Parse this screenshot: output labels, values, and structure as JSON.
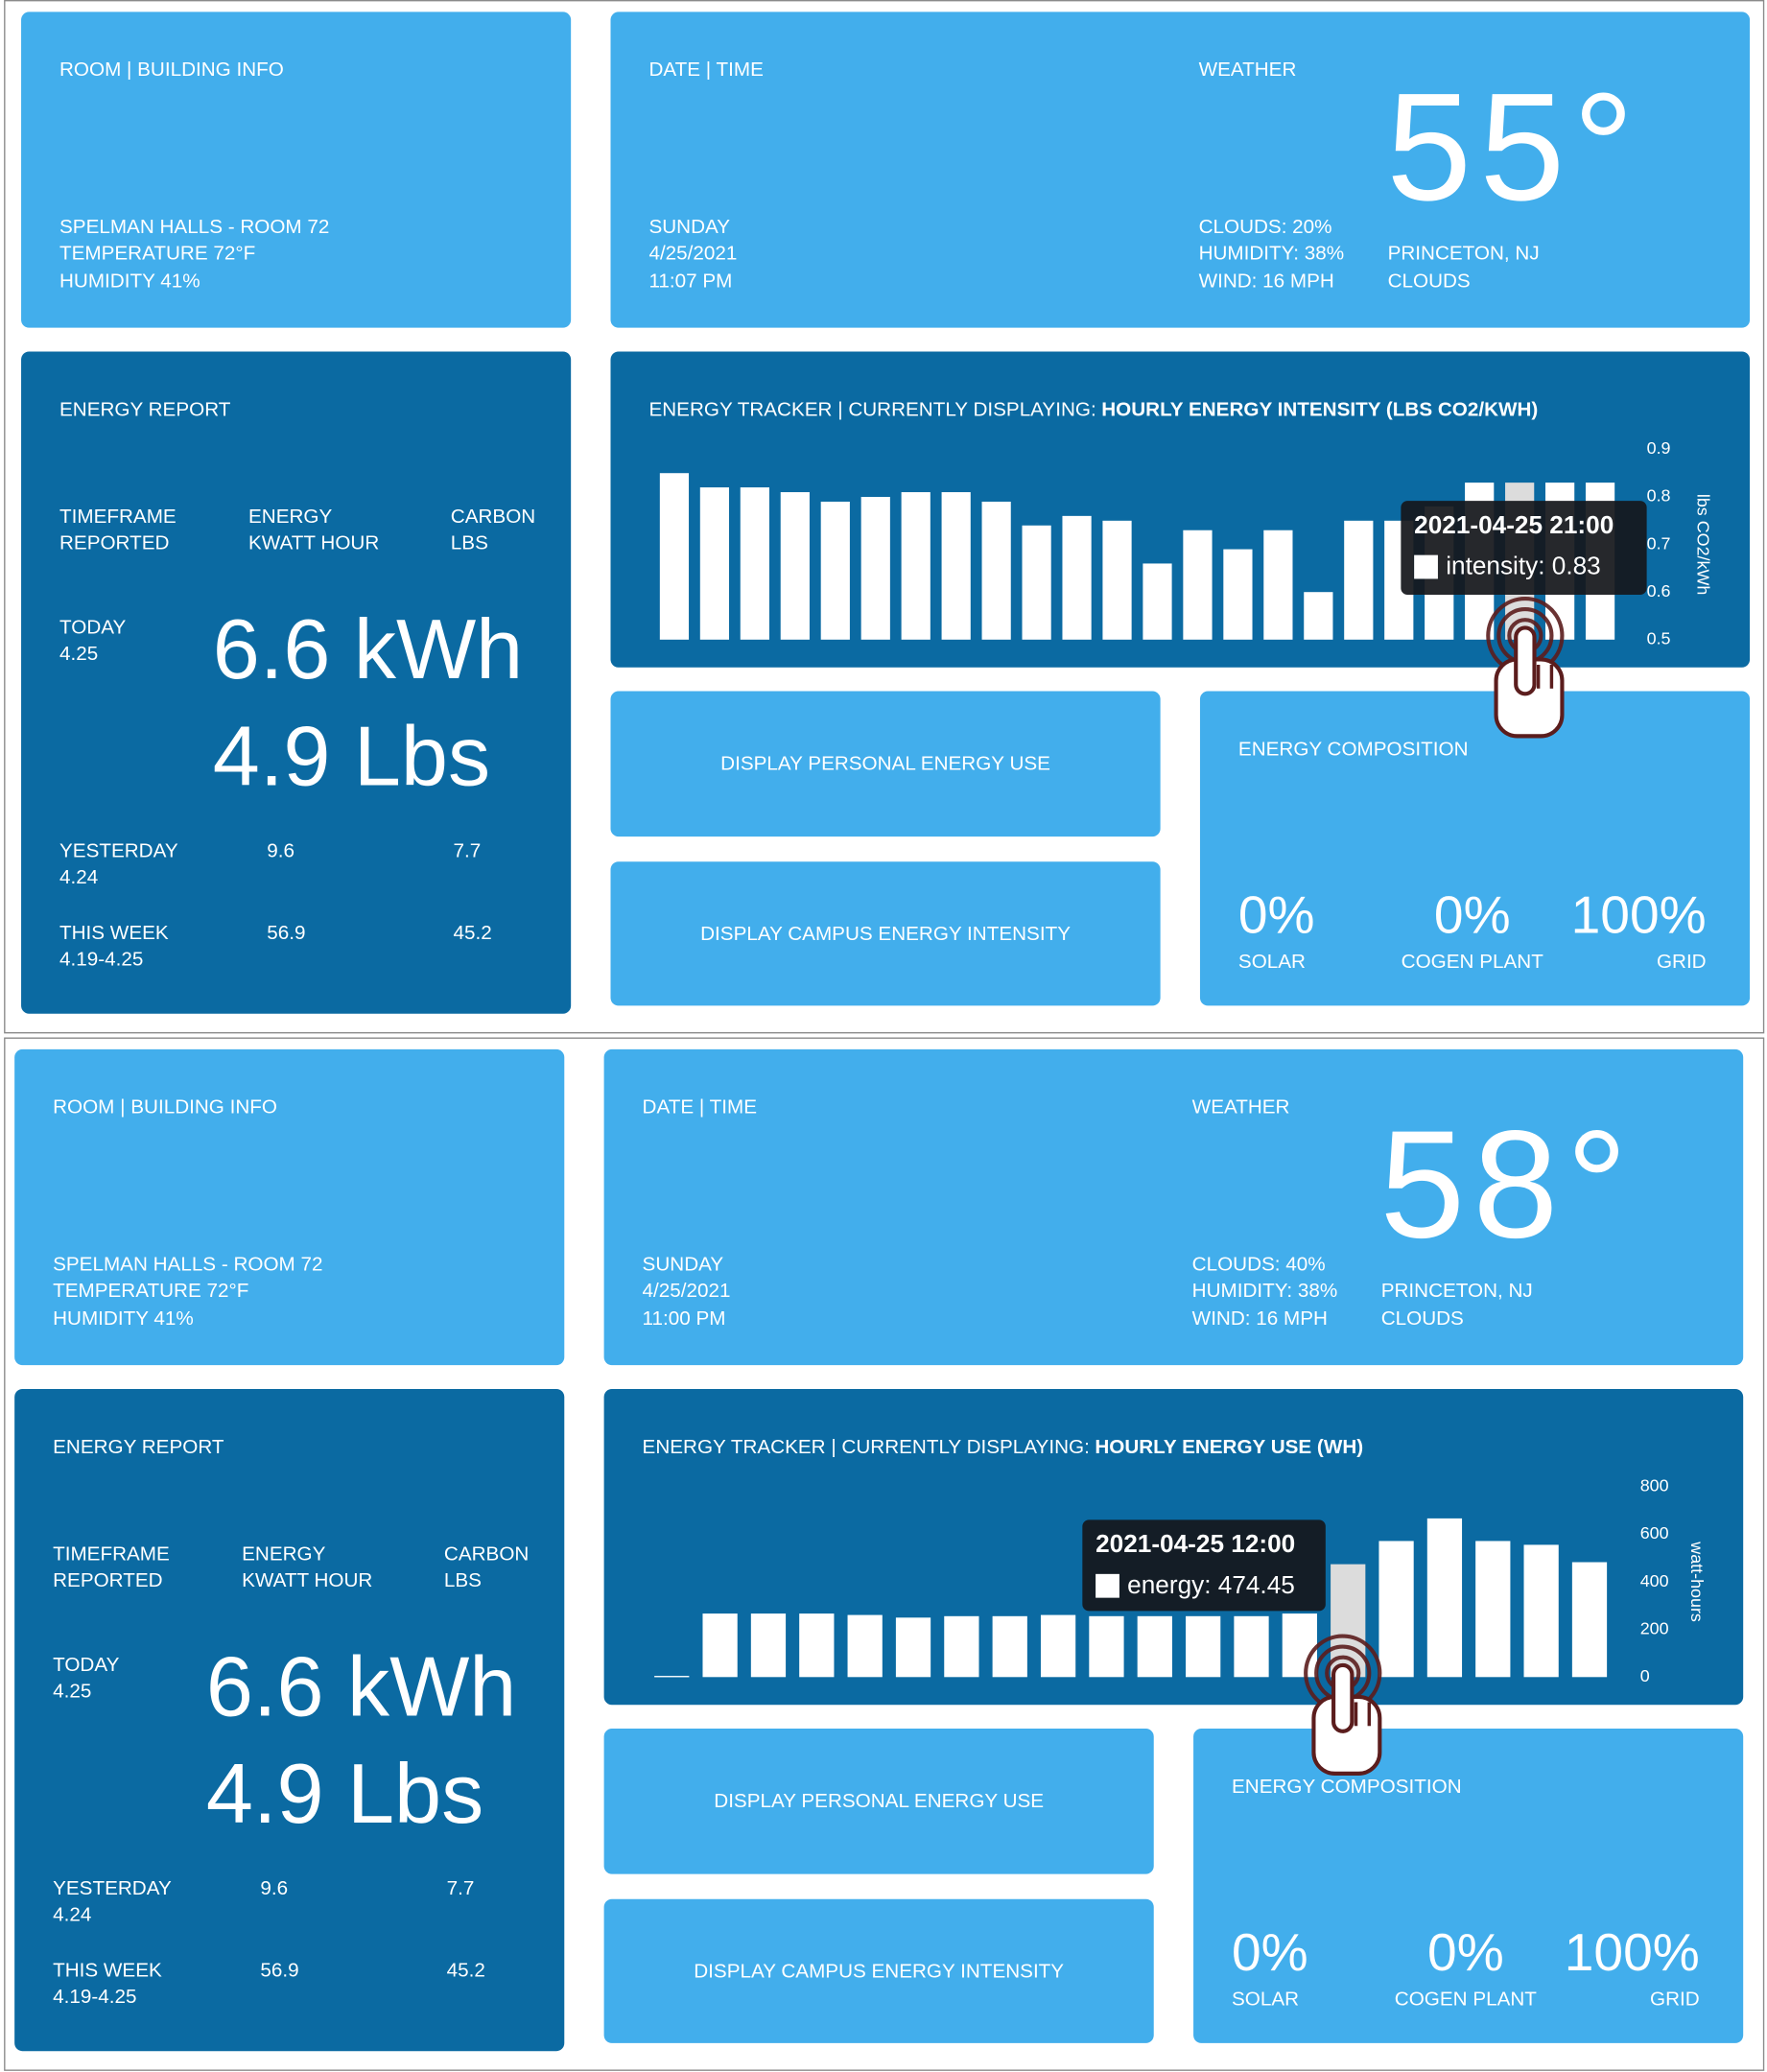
{
  "dashboards": [
    {
      "room": {
        "title": "ROOM | BUILDING INFO",
        "lines": [
          "SPELMAN HALLS - ROOM 72",
          "TEMPERATURE 72°F",
          "HUMIDITY 41%"
        ]
      },
      "datetime": {
        "title": "DATE | TIME",
        "lines": [
          "SUNDAY",
          "4/25/2021",
          "11:07 PM"
        ]
      },
      "weather": {
        "title": "WEATHER",
        "temperature": "55°",
        "conditions": [
          "CLOUDS: 20%",
          "HUMIDITY: 38%",
          "WIND: 16 MPH"
        ],
        "location": [
          "PRINCETON, NJ",
          "CLOUDS"
        ]
      },
      "energy_report": {
        "title": "ENERGY REPORT",
        "headers": [
          [
            "TIMEFRAME",
            "REPORTED"
          ],
          [
            "ENERGY",
            "KWATT HOUR"
          ],
          [
            "CARBON",
            "LBS"
          ]
        ],
        "today": {
          "label": [
            "TODAY",
            "4.25"
          ],
          "energy": "6.6 kWh",
          "carbon": "4.9 Lbs"
        },
        "rows": [
          {
            "label": [
              "YESTERDAY",
              "4.24"
            ],
            "energy": "9.6",
            "carbon": "7.7"
          },
          {
            "label": [
              "THIS WEEK",
              "4.19-4.25"
            ],
            "energy": "56.9",
            "carbon": "45.2"
          }
        ]
      },
      "buttons": [
        "DISPLAY PERSONAL ENERGY USE",
        "DISPLAY CAMPUS ENERGY INTENSITY"
      ],
      "composition": {
        "title": "ENERGY COMPOSITION",
        "items": [
          {
            "value": "0%",
            "label": "SOLAR"
          },
          {
            "value": "0%",
            "label": "COGEN PLANT"
          },
          {
            "value": "100%",
            "label": "GRID"
          }
        ]
      }
    },
    {
      "room": {
        "title": "ROOM | BUILDING INFO",
        "lines": [
          "SPELMAN HALLS - ROOM 72",
          "TEMPERATURE 72°F",
          "HUMIDITY 41%"
        ]
      },
      "datetime": {
        "title": "DATE | TIME",
        "lines": [
          "SUNDAY",
          "4/25/2021",
          "11:00 PM"
        ]
      },
      "weather": {
        "title": "WEATHER",
        "temperature": "58°",
        "conditions": [
          "CLOUDS: 40%",
          "HUMIDITY: 38%",
          "WIND: 16 MPH"
        ],
        "location": [
          "PRINCETON, NJ",
          "CLOUDS"
        ]
      },
      "energy_report": {
        "title": "ENERGY REPORT",
        "headers": [
          [
            "TIMEFRAME",
            "REPORTED"
          ],
          [
            "ENERGY",
            "KWATT HOUR"
          ],
          [
            "CARBON",
            "LBS"
          ]
        ],
        "today": {
          "label": [
            "TODAY",
            "4.25"
          ],
          "energy": "6.6 kWh",
          "carbon": "4.9 Lbs"
        },
        "rows": [
          {
            "label": [
              "YESTERDAY",
              "4.24"
            ],
            "energy": "9.6",
            "carbon": "7.7"
          },
          {
            "label": [
              "THIS WEEK",
              "4.19-4.25"
            ],
            "energy": "56.9",
            "carbon": "45.2"
          }
        ]
      },
      "buttons": [
        "DISPLAY PERSONAL ENERGY USE",
        "DISPLAY CAMPUS ENERGY INTENSITY"
      ],
      "composition": {
        "title": "ENERGY COMPOSITION",
        "items": [
          {
            "value": "0%",
            "label": "SOLAR"
          },
          {
            "value": "0%",
            "label": "COGEN PLANT"
          },
          {
            "value": "100%",
            "label": "GRID"
          }
        ]
      }
    }
  ],
  "chart_data": [
    {
      "type": "bar",
      "title": "ENERGY TRACKER | CURRENTLY DISPLAYING:",
      "title_bold": "HOURLY ENERGY INTENSITY (LBS CO2/KWH)",
      "y_label": "lbs CO2/kWh",
      "values": [
        0.85,
        0.82,
        0.82,
        0.81,
        0.79,
        0.8,
        0.81,
        0.81,
        0.79,
        0.74,
        0.76,
        0.75,
        0.66,
        0.73,
        0.69,
        0.73,
        0.6,
        0.75,
        0.75,
        0.78,
        0.83,
        0.83,
        0.83,
        0.83
      ],
      "bar_colors": [
        "#ffffff",
        "#ffffff",
        "#ffffff",
        "#ffffff",
        "#ffffff",
        "#ffffff",
        "#ffffff",
        "#ffffff",
        "#ffffff",
        "#ffffff",
        "#ffffff",
        "#ffffff",
        "#ffffff",
        "#ffffff",
        "#ffffff",
        "#ffffff",
        "#ffffff",
        "#ffffff",
        "#ffffff",
        "#ffffff",
        "#ffffff",
        "#dcdcdc",
        "#ffffff",
        "#ffffff"
      ],
      "ylim": [
        0.5,
        0.9
      ],
      "yticks": [
        0.5,
        0.6,
        0.7,
        0.8,
        0.9
      ],
      "tooltip": {
        "title": "2021-04-25 21:00",
        "label": "intensity: 0.83"
      }
    },
    {
      "type": "bar",
      "title": "ENERGY TRACKER | CURRENTLY DISPLAYING:",
      "title_bold": "HOURLY ENERGY USE (WH)",
      "y_label": "watt-hours",
      "values": [
        5,
        267,
        267,
        267,
        261,
        250,
        256,
        256,
        261,
        256,
        256,
        256,
        256,
        267,
        474.45,
        572,
        667,
        572,
        556,
        483
      ],
      "bar_colors": [
        "#ffffff",
        "#ffffff",
        "#ffffff",
        "#ffffff",
        "#ffffff",
        "#ffffff",
        "#ffffff",
        "#ffffff",
        "#ffffff",
        "#ffffff",
        "#ffffff",
        "#ffffff",
        "#ffffff",
        "#ffffff",
        "#dcdcdc",
        "#ffffff",
        "#ffffff",
        "#ffffff",
        "#ffffff",
        "#ffffff"
      ],
      "ylim": [
        0,
        800
      ],
      "yticks": [
        0,
        200,
        400,
        600,
        800
      ],
      "tooltip": {
        "title": "2021-04-25 12:00",
        "label": "energy: 474.45"
      }
    }
  ]
}
